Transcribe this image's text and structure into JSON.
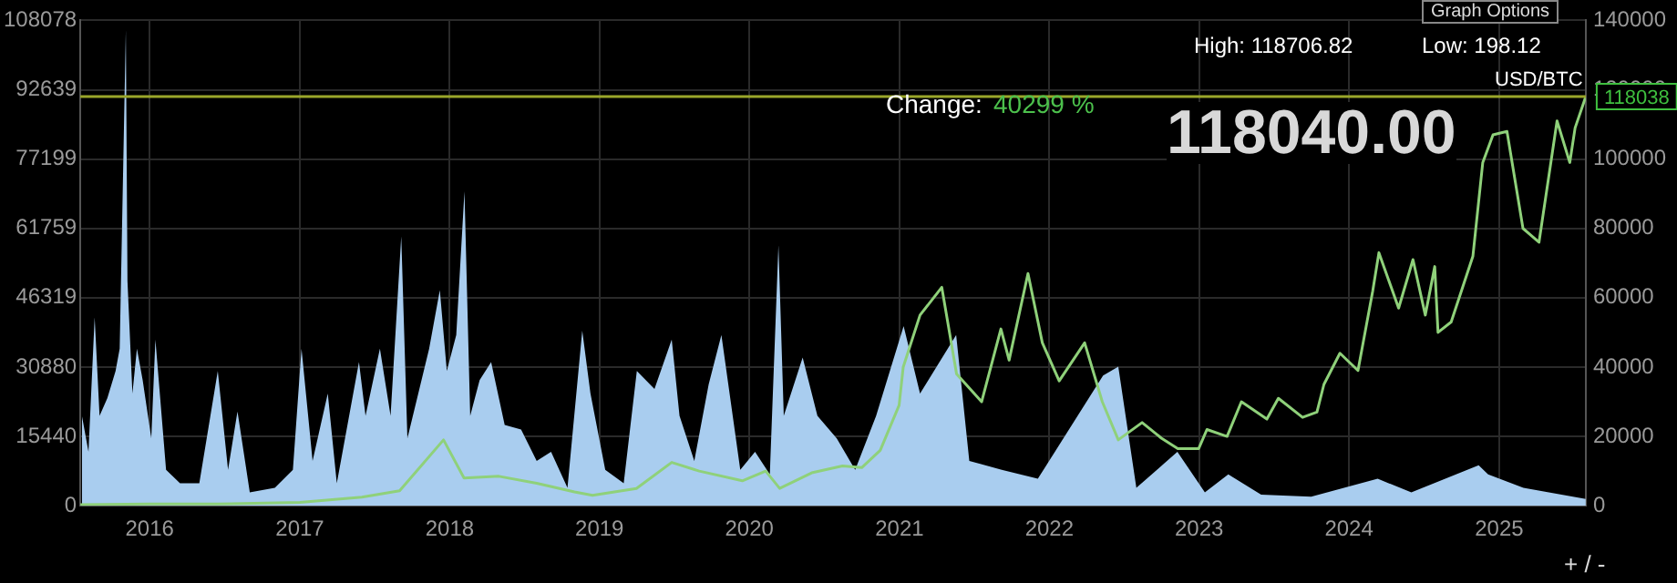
{
  "chart_data": {
    "type": "line",
    "xlim": [
      "2015-07-16",
      "2025-07-31"
    ],
    "xticks": [
      {
        "value": "2016-01-01",
        "label": "2016"
      },
      {
        "value": "2017-01-01",
        "label": "2017"
      },
      {
        "value": "2018-01-01",
        "label": "2018"
      },
      {
        "value": "2019-01-01",
        "label": "2019"
      },
      {
        "value": "2020-01-01",
        "label": "2020"
      },
      {
        "value": "2021-01-01",
        "label": "2021"
      },
      {
        "value": "2022-01-01",
        "label": "2022"
      },
      {
        "value": "2023-01-01",
        "label": "2023"
      },
      {
        "value": "2024-01-01",
        "label": "2024"
      },
      {
        "value": "2025-01-01",
        "label": "2025"
      }
    ],
    "ylim": [
      0,
      108078
    ],
    "yticks": [
      0,
      15440,
      30880,
      46319,
      61759,
      77199,
      92639,
      108078
    ],
    "y2lim": [
      0,
      140000
    ],
    "y2ticks": [
      0,
      20000,
      40000,
      60000,
      80000,
      100000,
      120000,
      140000
    ],
    "grid": true,
    "legend": false,
    "ref_lines": [
      {
        "axis": "y2",
        "value": 118038,
        "label": "118038",
        "color": "#9aa62a"
      }
    ],
    "annotations": [
      "High: 118706.82",
      "Low: 198.12",
      "USD/BTC",
      "Change:",
      "40299 %",
      "118040.00",
      "Graph Options",
      "+ / -"
    ],
    "series": [
      {
        "type": "area",
        "color": "#a9cdef",
        "x": [
          "2015-07-20",
          "2015-08-05",
          "2015-08-20",
          "2015-09-01",
          "2015-09-20",
          "2015-10-10",
          "2015-10-20",
          "2015-11-04",
          "2015-11-08",
          "2015-11-20",
          "2015-12-01",
          "2015-12-15",
          "2016-01-05",
          "2016-01-15",
          "2016-02-10",
          "2016-03-15",
          "2016-05-01",
          "2016-06-15",
          "2016-07-10",
          "2016-08-02",
          "2016-09-01",
          "2016-11-01",
          "2016-12-15",
          "2017-01-05",
          "2017-02-01",
          "2017-03-10",
          "2017-04-01",
          "2017-05-25",
          "2017-06-10",
          "2017-07-15",
          "2017-08-10",
          "2017-09-05",
          "2017-09-20",
          "2017-11-12",
          "2017-12-08",
          "2017-12-25",
          "2018-01-17",
          "2018-02-06",
          "2018-02-20",
          "2018-03-15",
          "2018-04-12",
          "2018-05-15",
          "2018-06-24",
          "2018-08-01",
          "2018-09-05",
          "2018-10-15",
          "2018-11-20",
          "2018-12-10",
          "2019-01-15",
          "2019-03-01",
          "2019-04-02",
          "2019-05-15",
          "2019-06-26",
          "2019-07-15",
          "2019-08-20",
          "2019-09-24",
          "2019-10-25",
          "2019-12-10",
          "2020-01-15",
          "2020-02-20",
          "2020-03-12",
          "2020-03-25",
          "2020-05-10",
          "2020-06-15",
          "2020-08-01",
          "2020-09-15",
          "2020-11-05",
          "2021-01-11",
          "2021-02-20",
          "2021-05-19",
          "2021-06-20",
          "2021-09-07",
          "2021-12-04",
          "2022-05-12",
          "2022-06-18",
          "2022-08-01",
          "2022-11-09",
          "2023-01-15",
          "2023-03-13",
          "2023-06-01",
          "2023-10-01",
          "2024-03-11",
          "2024-06-01",
          "2024-11-12",
          "2024-12-05",
          "2025-03-01",
          "2025-07-31"
        ],
        "values": [
          20000,
          12000,
          42000,
          20000,
          24000,
          30000,
          35000,
          106000,
          50000,
          25000,
          35000,
          28000,
          15000,
          37000,
          8000,
          5000,
          5000,
          30000,
          8000,
          21000,
          3000,
          4000,
          8000,
          35000,
          10000,
          25000,
          5000,
          32000,
          20000,
          35000,
          20000,
          60000,
          15000,
          35000,
          48000,
          30000,
          38000,
          70000,
          20000,
          28000,
          32000,
          18000,
          17000,
          10000,
          12000,
          4000,
          39000,
          25000,
          8000,
          5000,
          30000,
          26000,
          37000,
          20000,
          10000,
          27000,
          38000,
          8000,
          12000,
          7000,
          58000,
          20000,
          33000,
          20000,
          15000,
          8000,
          20000,
          40000,
          25000,
          38000,
          10000,
          8000,
          6000,
          29000,
          31000,
          4000,
          12000,
          3000,
          7000,
          2500,
          2000,
          6000,
          3000,
          9000,
          7000,
          4000,
          1500
        ]
      },
      {
        "type": "line",
        "axis": "y2",
        "color": "#8fd17a",
        "x": [
          "2015-07-16",
          "2016-01-01",
          "2016-06-15",
          "2017-01-01",
          "2017-06-01",
          "2017-09-01",
          "2017-12-17",
          "2018-02-05",
          "2018-05-01",
          "2018-08-01",
          "2018-11-01",
          "2018-12-15",
          "2019-04-01",
          "2019-06-26",
          "2019-09-01",
          "2019-12-15",
          "2020-02-10",
          "2020-03-15",
          "2020-06-01",
          "2020-08-15",
          "2020-10-01",
          "2020-11-15",
          "2020-12-31",
          "2021-01-10",
          "2021-02-20",
          "2021-04-14",
          "2021-05-20",
          "2021-07-20",
          "2021-09-05",
          "2021-09-25",
          "2021-11-10",
          "2021-12-15",
          "2022-01-25",
          "2022-03-28",
          "2022-05-10",
          "2022-06-18",
          "2022-08-15",
          "2022-10-01",
          "2022-11-10",
          "2022-12-31",
          "2023-01-20",
          "2023-03-10",
          "2023-04-14",
          "2023-06-15",
          "2023-07-13",
          "2023-09-10",
          "2023-10-15",
          "2023-11-01",
          "2023-12-10",
          "2024-01-23",
          "2024-02-28",
          "2024-03-14",
          "2024-05-01",
          "2024-06-05",
          "2024-07-05",
          "2024-07-28",
          "2024-08-05",
          "2024-09-06",
          "2024-10-29",
          "2024-11-22",
          "2024-12-17",
          "2025-01-20",
          "2025-02-28",
          "2025-04-08",
          "2025-05-22",
          "2025-06-22",
          "2025-07-05",
          "2025-07-31"
        ],
        "values": [
          300,
          500,
          500,
          1000,
          2500,
          4300,
          19000,
          8000,
          8500,
          6500,
          4000,
          3000,
          5000,
          12500,
          10000,
          7200,
          10000,
          5000,
          9500,
          11500,
          11000,
          16000,
          29000,
          40000,
          55000,
          63000,
          38000,
          30000,
          51000,
          42000,
          67000,
          47000,
          36000,
          47000,
          30000,
          19000,
          24000,
          19500,
          16500,
          16500,
          22000,
          20000,
          30000,
          25000,
          31000,
          25500,
          27000,
          35000,
          44000,
          39000,
          62000,
          73000,
          57000,
          71000,
          55000,
          69000,
          50000,
          53000,
          72000,
          99000,
          107000,
          108000,
          80000,
          76000,
          111000,
          99000,
          109000,
          118038
        ]
      }
    ]
  }
}
